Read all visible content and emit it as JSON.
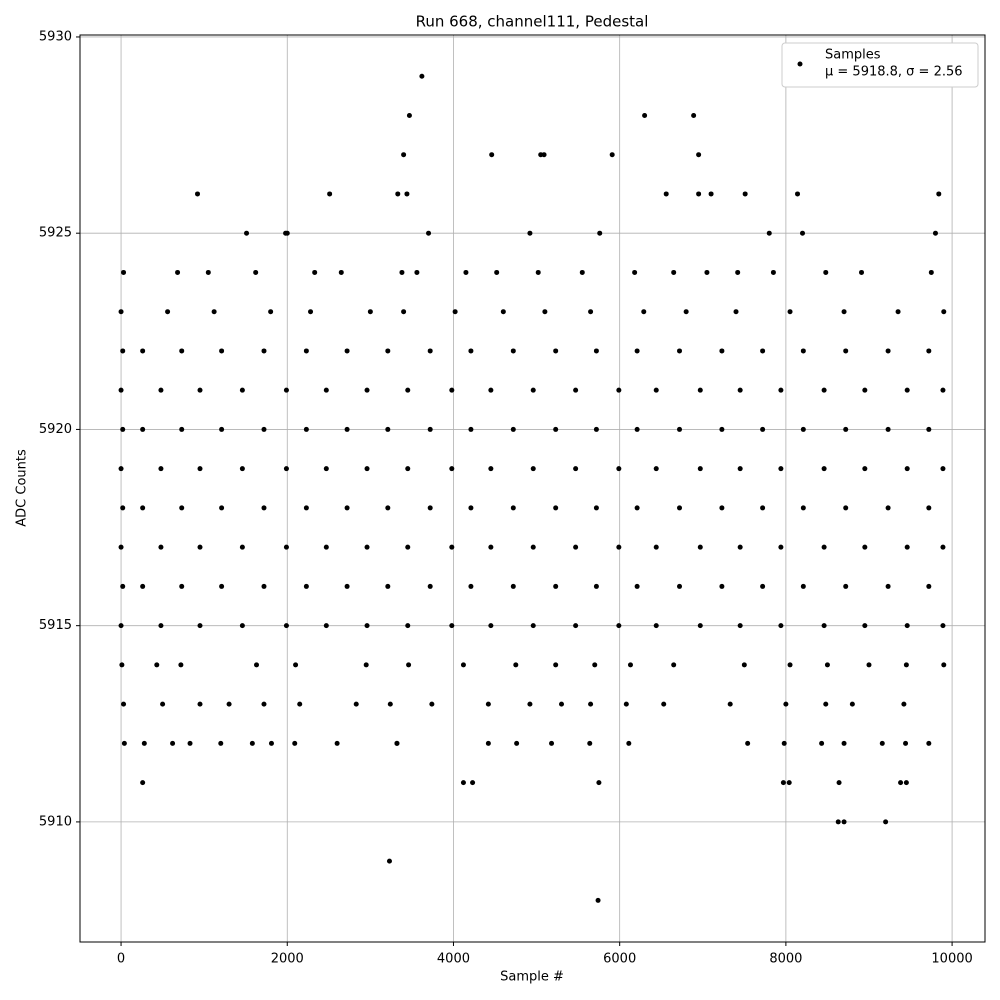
{
  "chart_data": {
    "type": "scatter",
    "title": "Run 668, channel111, Pedestal",
    "xlabel": "Sample #",
    "ylabel": "ADC Counts",
    "xlim": [
      -494,
      10396
    ],
    "ylim": [
      5906.94,
      5930.05
    ],
    "xticks": [
      0,
      2000,
      4000,
      6000,
      8000,
      10000
    ],
    "yticks": [
      5910,
      5915,
      5920,
      5925,
      5930
    ],
    "grid": true,
    "legend": "upper right",
    "series": [
      {
        "name": "Samples",
        "annotation": "μ = 5918.8, σ = 2.56",
        "color": "#000000",
        "x": [
          920,
          1510,
          1980,
          2000,
          2510,
          3230,
          3330,
          3400,
          3440,
          3470,
          3620,
          3700,
          4460,
          4920,
          5050,
          5090,
          5760,
          5740,
          5910,
          6300,
          6560,
          6890,
          6950,
          6950,
          7100,
          7510,
          7800,
          8140,
          8200,
          9840,
          9800,
          260,
          4120,
          4230,
          5750,
          7970,
          8040,
          8640,
          9380,
          9450,
          8630,
          8700,
          9200,
          3320,
          0,
          480,
          950,
          1460,
          1990,
          2470,
          2960,
          3450,
          3980,
          4450,
          4960,
          5470,
          5990,
          6440,
          6970,
          7450,
          7940,
          8460,
          8950,
          9460,
          9890,
          20,
          260,
          730,
          1210,
          1720,
          2230,
          2720,
          3210,
          3720,
          4210,
          4720,
          5230,
          5720,
          6210,
          6720,
          7230,
          7720,
          8210,
          8720,
          9230,
          9720,
          0,
          480,
          950,
          1460,
          1990,
          2470,
          2960,
          3450,
          3980,
          4450,
          4960,
          5470,
          5990,
          6440,
          6970,
          7450,
          7940,
          8460,
          8950,
          9460,
          9890,
          20,
          260,
          730,
          1210,
          1720,
          2230,
          2720,
          3210,
          3720,
          4210,
          4720,
          5230,
          5720,
          6210,
          6720,
          7230,
          7720,
          8210,
          8720,
          9230,
          9720,
          0,
          480,
          950,
          1460,
          1990,
          2470,
          2960,
          3450,
          3980,
          4450,
          4960,
          5470,
          5990,
          6440,
          6970,
          7450,
          7940,
          8460,
          8950,
          9460,
          9890,
          20,
          260,
          730,
          1210,
          1720,
          2230,
          2720,
          3210,
          3720,
          4210,
          4720,
          5230,
          5720,
          6210,
          6720,
          7230,
          7720,
          8210,
          8720,
          9230,
          9720,
          0,
          480,
          950,
          1460,
          1990,
          2470,
          2960,
          3450,
          3980,
          4450,
          4960,
          5470,
          5990,
          6440,
          6970,
          7450,
          7940,
          8460,
          8950,
          9460,
          9890,
          20,
          260,
          730,
          1210,
          1720,
          2230,
          2720,
          3210,
          3720,
          4210,
          4720,
          5230,
          5720,
          6210,
          6720,
          7230,
          7720,
          8210,
          8720,
          9230,
          9720,
          30,
          680,
          1050,
          1620,
          2330,
          2650,
          3380,
          3560,
          4150,
          4520,
          5020,
          5550,
          6180,
          6650,
          7050,
          7420,
          7850,
          8480,
          8910,
          9750,
          0,
          560,
          1120,
          1800,
          2280,
          3000,
          3400,
          4020,
          4600,
          5100,
          5650,
          6290,
          6800,
          7400,
          8050,
          8700,
          9350,
          9900,
          10,
          430,
          720,
          1630,
          2100,
          2950,
          3460,
          4120,
          4750,
          5230,
          5700,
          6130,
          6650,
          7500,
          8050,
          8500,
          9000,
          9450,
          9900,
          30,
          500,
          950,
          1300,
          1720,
          2150,
          2830,
          3240,
          3740,
          4420,
          4920,
          5300,
          5650,
          6080,
          6530,
          7330,
          8000,
          8480,
          8800,
          9420,
          40,
          280,
          620,
          830,
          1200,
          1580,
          1810,
          2090,
          2600,
          3320,
          4420,
          4760,
          5180,
          5640,
          6110,
          7540,
          7980,
          8430,
          8700,
          9160,
          9440,
          9720
        ],
        "values": [
          5926,
          5925,
          5925,
          5925,
          5926,
          5909,
          5926,
          5927,
          5926,
          5928,
          5929,
          5925,
          5927,
          5925,
          5927,
          5927,
          5925,
          5908,
          5927,
          5928,
          5926,
          5928,
          5927,
          5926,
          5926,
          5926,
          5925,
          5926,
          5925,
          5926,
          5925,
          5911,
          5911,
          5911,
          5911,
          5911,
          5911,
          5911,
          5911,
          5911,
          5910,
          5910,
          5910,
          5912,
          5915,
          5915,
          5915,
          5915,
          5915,
          5915,
          5915,
          5915,
          5915,
          5915,
          5915,
          5915,
          5915,
          5915,
          5915,
          5915,
          5915,
          5915,
          5915,
          5915,
          5915,
          5916,
          5916,
          5916,
          5916,
          5916,
          5916,
          5916,
          5916,
          5916,
          5916,
          5916,
          5916,
          5916,
          5916,
          5916,
          5916,
          5916,
          5916,
          5916,
          5916,
          5916,
          5917,
          5917,
          5917,
          5917,
          5917,
          5917,
          5917,
          5917,
          5917,
          5917,
          5917,
          5917,
          5917,
          5917,
          5917,
          5917,
          5917,
          5917,
          5917,
          5917,
          5917,
          5918,
          5918,
          5918,
          5918,
          5918,
          5918,
          5918,
          5918,
          5918,
          5918,
          5918,
          5918,
          5918,
          5918,
          5918,
          5918,
          5918,
          5918,
          5918,
          5918,
          5918,
          5919,
          5919,
          5919,
          5919,
          5919,
          5919,
          5919,
          5919,
          5919,
          5919,
          5919,
          5919,
          5919,
          5919,
          5919,
          5919,
          5919,
          5919,
          5919,
          5919,
          5919,
          5920,
          5920,
          5920,
          5920,
          5920,
          5920,
          5920,
          5920,
          5920,
          5920,
          5920,
          5920,
          5920,
          5920,
          5920,
          5920,
          5920,
          5920,
          5920,
          5920,
          5920,
          5921,
          5921,
          5921,
          5921,
          5921,
          5921,
          5921,
          5921,
          5921,
          5921,
          5921,
          5921,
          5921,
          5921,
          5921,
          5921,
          5921,
          5921,
          5921,
          5921,
          5921,
          5922,
          5922,
          5922,
          5922,
          5922,
          5922,
          5922,
          5922,
          5922,
          5922,
          5922,
          5922,
          5922,
          5922,
          5922,
          5922,
          5922,
          5922,
          5922,
          5922,
          5922,
          5924,
          5924,
          5924,
          5924,
          5924,
          5924,
          5924,
          5924,
          5924,
          5924,
          5924,
          5924,
          5924,
          5924,
          5924,
          5924,
          5924,
          5924,
          5924,
          5924,
          5923,
          5923,
          5923,
          5923,
          5923,
          5923,
          5923,
          5923,
          5923,
          5923,
          5923,
          5923,
          5923,
          5923,
          5923,
          5923,
          5923,
          5923,
          5914,
          5914,
          5914,
          5914,
          5914,
          5914,
          5914,
          5914,
          5914,
          5914,
          5914,
          5914,
          5914,
          5914,
          5914,
          5914,
          5914,
          5914,
          5914,
          5913,
          5913,
          5913,
          5913,
          5913,
          5913,
          5913,
          5913,
          5913,
          5913,
          5913,
          5913,
          5913,
          5913,
          5913,
          5913,
          5913,
          5913,
          5913,
          5913,
          5912,
          5912,
          5912,
          5912,
          5912,
          5912,
          5912,
          5912,
          5912,
          5912,
          5912,
          5912,
          5912,
          5912,
          5912,
          5912,
          5912,
          5912,
          5912,
          5912,
          5912,
          5912
        ]
      }
    ]
  }
}
